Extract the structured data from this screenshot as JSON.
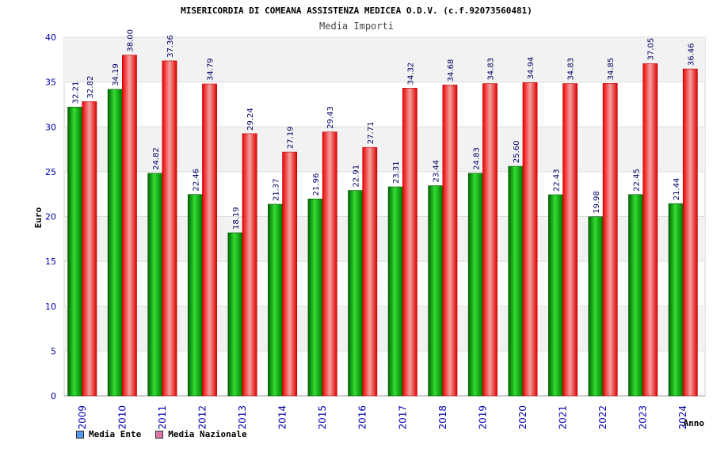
{
  "chart_data": {
    "type": "bar",
    "title": "MISERICORDIA DI COMEANA ASSISTENZA MEDICEA O.D.V. (c.f.92073560481)",
    "subtitle": "Media Importi",
    "xlabel": "Anno",
    "ylabel": "Euro",
    "ylim": [
      0,
      40
    ],
    "yticks": [
      "0",
      "5",
      "10",
      "15",
      "20",
      "25",
      "30",
      "35",
      "40"
    ],
    "categories": [
      "2009",
      "2010",
      "2011",
      "2012",
      "2013",
      "2014",
      "2015",
      "2016",
      "2017",
      "2018",
      "2019",
      "2020",
      "2021",
      "2022",
      "2023",
      "2024"
    ],
    "series": [
      {
        "name": "Media Ente",
        "color": "#009900",
        "legend_color": "#5599ee",
        "values": [
          32.21,
          34.19,
          24.82,
          22.46,
          18.19,
          21.37,
          21.96,
          22.91,
          23.31,
          23.44,
          24.83,
          25.6,
          22.43,
          19.98,
          22.45,
          21.44
        ],
        "labels": [
          "32.21",
          "34.19",
          "24.82",
          "22.46",
          "18.19",
          "21.37",
          "21.96",
          "22.91",
          "23.31",
          "23.44",
          "24.83",
          "25.60",
          "22.43",
          "19.98",
          "22.45",
          "21.44"
        ]
      },
      {
        "name": "Media Nazionale",
        "color": "#ee1111",
        "legend_color": "#dd77aa",
        "values": [
          32.82,
          38.0,
          37.36,
          34.79,
          29.24,
          27.19,
          29.43,
          27.71,
          34.32,
          34.68,
          34.83,
          34.94,
          34.83,
          34.85,
          37.05,
          36.46
        ],
        "labels": [
          "32.82",
          "38.00",
          "37.36",
          "34.79",
          "29.24",
          "27.19",
          "29.43",
          "27.71",
          "34.32",
          "34.68",
          "34.83",
          "34.94",
          "34.83",
          "34.85",
          "37.05",
          "36.46"
        ]
      }
    ],
    "grid": true,
    "legend_position": "bottom-left"
  }
}
